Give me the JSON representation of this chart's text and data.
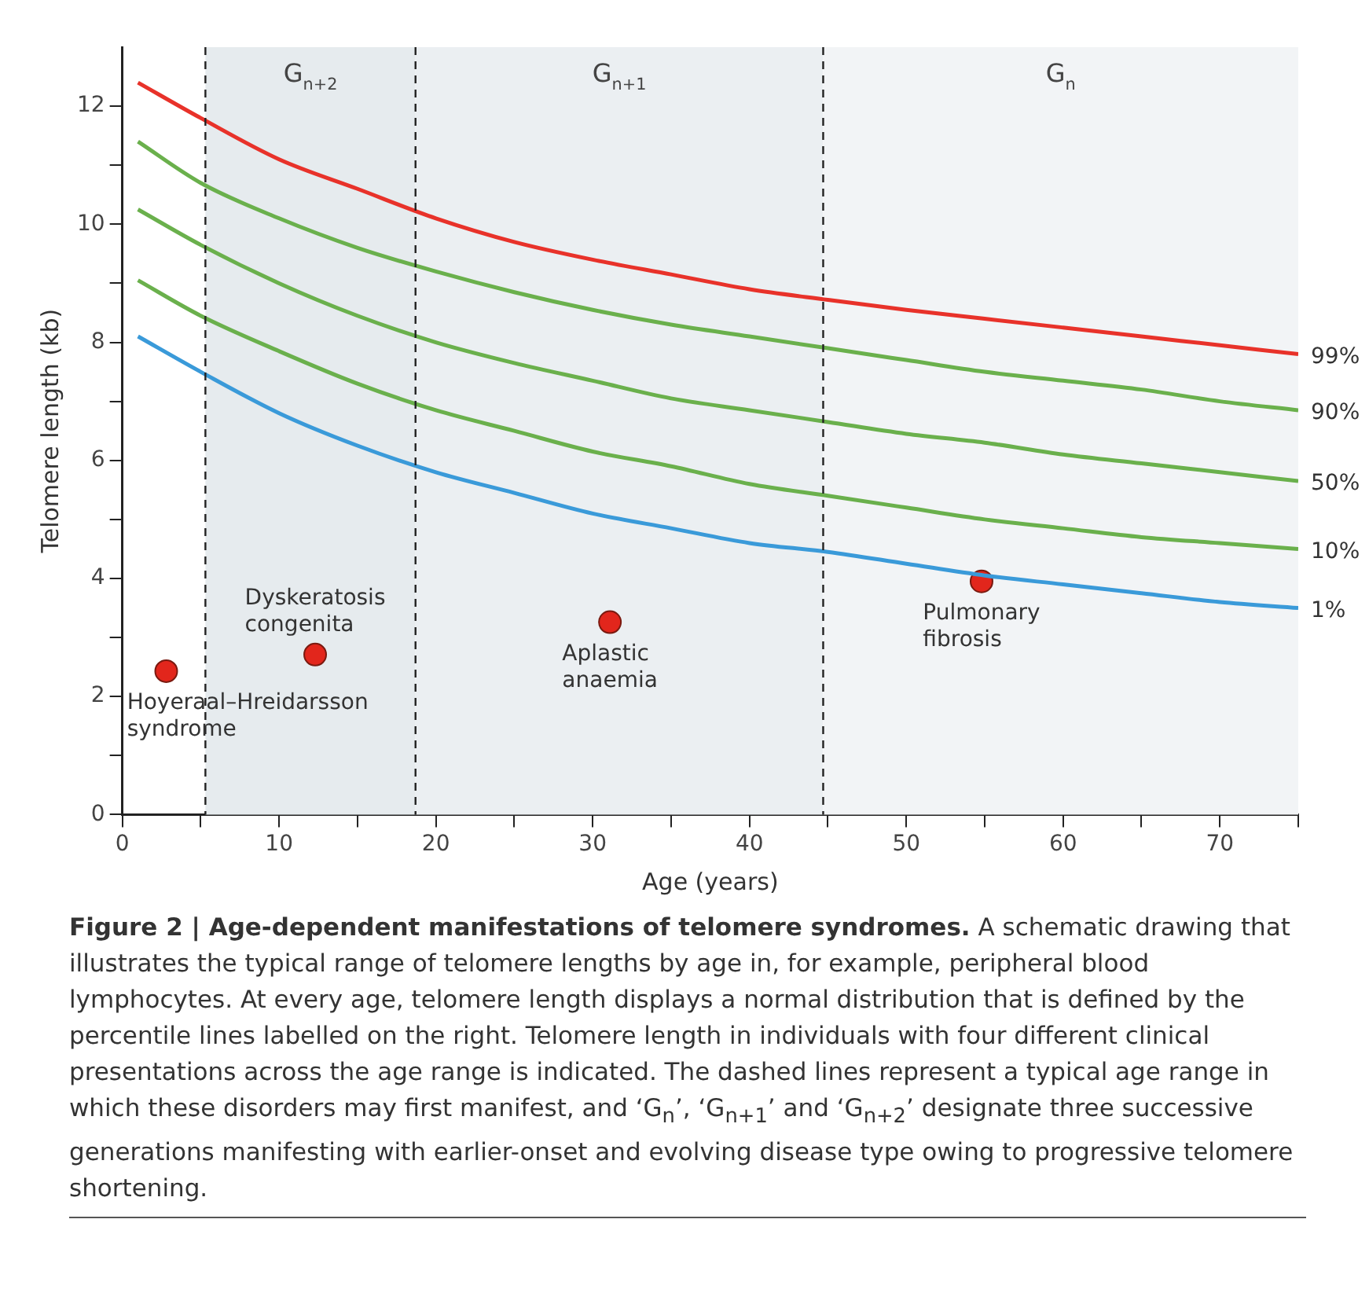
{
  "chart_data": {
    "type": "line",
    "title": "Figure 2 | Age-dependent manifestations of telomere syndromes.",
    "xlabel": "Age (years)",
    "ylabel": "Telomere length (kb)",
    "x": [
      1,
      5,
      10,
      15,
      20,
      25,
      30,
      35,
      40,
      45,
      50,
      55,
      60,
      65,
      70,
      75
    ],
    "series": [
      {
        "name": "99%",
        "color": "#e8322a",
        "marker": "none",
        "values": [
          12.4,
          11.8,
          11.1,
          10.6,
          10.1,
          9.7,
          9.4,
          9.15,
          8.9,
          8.72,
          8.55,
          8.4,
          8.25,
          8.1,
          7.95,
          7.8
        ]
      },
      {
        "name": "90%",
        "color": "#6ab04c",
        "marker": "none",
        "values": [
          11.4,
          10.7,
          10.1,
          9.6,
          9.2,
          8.85,
          8.55,
          8.3,
          8.1,
          7.9,
          7.7,
          7.5,
          7.35,
          7.2,
          7.0,
          6.85
        ]
      },
      {
        "name": "50%",
        "color": "#6ab04c",
        "marker": "none",
        "values": [
          10.25,
          9.65,
          9.0,
          8.45,
          8.0,
          7.65,
          7.35,
          7.05,
          6.85,
          6.65,
          6.45,
          6.3,
          6.1,
          5.95,
          5.8,
          5.65
        ]
      },
      {
        "name": "10%",
        "color": "#6ab04c",
        "marker": "none",
        "values": [
          9.05,
          8.45,
          7.85,
          7.3,
          6.85,
          6.5,
          6.15,
          5.9,
          5.6,
          5.4,
          5.2,
          5.0,
          4.85,
          4.7,
          4.6,
          4.5
        ]
      },
      {
        "name": "1%",
        "color": "#3a9ad9",
        "marker": "none",
        "values": [
          8.1,
          7.5,
          6.8,
          6.25,
          5.8,
          5.45,
          5.1,
          4.85,
          4.6,
          4.45,
          4.25,
          4.05,
          3.9,
          3.75,
          3.6,
          3.5
        ]
      },
      {
        "type": "scatter",
        "color": "#e2261c",
        "marker": "circle",
        "x": [
          2.8,
          12.3,
          31.1,
          54.8
        ],
        "values": [
          2.43,
          2.71,
          3.26,
          3.95
        ]
      }
    ],
    "xlim": [
      0,
      75
    ],
    "xticks": [
      0,
      {
        "value": 5,
        "label": null
      },
      10,
      {
        "value": 15,
        "label": null
      },
      20,
      {
        "value": 25,
        "label": null
      },
      30,
      {
        "value": 35,
        "label": null
      },
      40,
      {
        "value": 45,
        "label": null
      },
      50,
      {
        "value": 55,
        "label": null
      },
      60,
      {
        "value": 65,
        "label": null
      },
      70,
      {
        "value": 75,
        "label": null
      }
    ],
    "ylim": [
      0,
      13
    ],
    "yticks": [
      0,
      {
        "value": 1,
        "label": null
      },
      2,
      {
        "value": 3,
        "label": null
      },
      4,
      {
        "value": 5,
        "label": null
      },
      6,
      {
        "value": 7,
        "label": null
      },
      8,
      {
        "value": 9,
        "label": null
      },
      10,
      {
        "value": 11,
        "label": null
      },
      12
    ],
    "ref_lines": [
      {
        "axis": "x",
        "value": 5.3,
        "line_style": "dashed",
        "color": "#222222"
      },
      {
        "axis": "x",
        "value": 18.7,
        "line_style": "dashed",
        "color": "#222222"
      },
      {
        "axis": "x",
        "value": 44.7,
        "line_style": "dashed",
        "color": "#222222"
      }
    ],
    "bands": [
      {
        "axis": "x",
        "from": 5.3,
        "to": 18.7,
        "label": "G$_{n+2}$",
        "color": "#e6ebee"
      },
      {
        "axis": "x",
        "from": 18.7,
        "to": 44.7,
        "label": "G$_{n+1}$",
        "color": "#ebeff2"
      },
      {
        "axis": "x",
        "from": 44.7,
        "to": 75,
        "label": "G$_{n}$",
        "color": "#f2f4f6"
      }
    ],
    "annotations": [
      {
        "text": "Hoyeraal–Hreidarsson syndrome",
        "x": 2.8,
        "y": 2.43
      },
      {
        "text": "Dyskeratosis congenita",
        "x": 12.3,
        "y": 2.71
      },
      {
        "text": "Aplastic anaemia",
        "x": 31.1,
        "y": 3.26
      },
      {
        "text": "Pulmonary fibrosis",
        "x": 54.8,
        "y": 3.95
      },
      "A schematic drawing that illustrates the typical range of telomere lengths by age in, for example, peripheral blood lymphocytes. At every age, telomere length displays a normal distribution that is defined by the percentile lines labelled on the right. Telomere length in individuals with four different clinical presentations across the age range is indicated. The dashed lines represent a typical age range in which these disorders may first manifest, and ‘G$_{n}$’, ‘G$_{n+1}$’ and ‘G$_{n+2}$’ designate three successive generations manifesting with earlier-onset and evolving disease type owing to progressive telomere shortening."
    ],
    "grid": false,
    "legend": false
  }
}
